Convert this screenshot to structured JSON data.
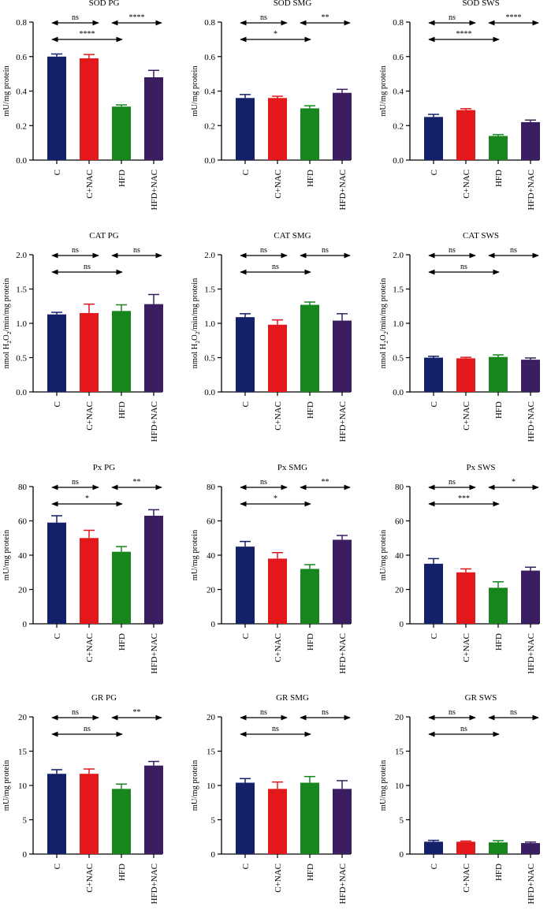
{
  "categories": [
    "C",
    "C+NAC",
    "HFD",
    "HFD+NAC"
  ],
  "bar_colors": [
    "#13216b",
    "#e3181a",
    "#18861e",
    "#3b1e61"
  ],
  "chart_data": [
    {
      "type": "bar",
      "title": "SOD PG",
      "ylabel": "mU/mg protein",
      "ylim": [
        0,
        0.8
      ],
      "yticks": [
        0.0,
        0.2,
        0.4,
        0.6,
        0.8
      ],
      "tick_labels": [
        "0.0",
        "0.2",
        "0.4",
        "0.6",
        "0.8"
      ],
      "values": [
        0.6,
        0.59,
        0.31,
        0.48
      ],
      "errors": [
        0.015,
        0.022,
        0.01,
        0.04
      ],
      "sig": {
        "top_left": "ns",
        "top_right": "****",
        "bottom": "****"
      }
    },
    {
      "type": "bar",
      "title": "SOD SMG",
      "ylabel": "mU/mg protein",
      "ylim": [
        0,
        0.8
      ],
      "yticks": [
        0.0,
        0.2,
        0.4,
        0.6,
        0.8
      ],
      "tick_labels": [
        "0.0",
        "0.2",
        "0.4",
        "0.6",
        "0.8"
      ],
      "values": [
        0.36,
        0.36,
        0.3,
        0.39
      ],
      "errors": [
        0.02,
        0.01,
        0.015,
        0.02
      ],
      "sig": {
        "top_left": "ns",
        "top_right": "**",
        "bottom": "*"
      }
    },
    {
      "type": "bar",
      "title": "SOD SWS",
      "ylabel": "mU/mg protein",
      "ylim": [
        0,
        0.8
      ],
      "yticks": [
        0.0,
        0.2,
        0.4,
        0.6,
        0.8
      ],
      "tick_labels": [
        "0.0",
        "0.2",
        "0.4",
        "0.6",
        "0.8"
      ],
      "values": [
        0.25,
        0.29,
        0.14,
        0.22
      ],
      "errors": [
        0.015,
        0.008,
        0.008,
        0.012
      ],
      "sig": {
        "top_left": "ns",
        "top_right": "****",
        "bottom": "****"
      }
    },
    {
      "type": "bar",
      "title": "CAT PG",
      "ylabel_parts": [
        "nmol H",
        "2",
        "O",
        "2",
        "/min/mg protein"
      ],
      "ylim": [
        0,
        2.0
      ],
      "yticks": [
        0.0,
        0.5,
        1.0,
        1.5,
        2.0
      ],
      "tick_labels": [
        "0.0",
        "0.5",
        "1.0",
        "1.5",
        "2.0"
      ],
      "values": [
        1.13,
        1.15,
        1.18,
        1.28
      ],
      "errors": [
        0.03,
        0.13,
        0.09,
        0.14
      ],
      "sig": {
        "top_left": "ns",
        "top_right": "ns",
        "bottom": "ns"
      }
    },
    {
      "type": "bar",
      "title": "CAT SMG",
      "ylabel_parts": [
        "nmol H",
        "2",
        "O",
        "2",
        "/min/mg protein"
      ],
      "ylim": [
        0,
        2.0
      ],
      "yticks": [
        0.0,
        0.5,
        1.0,
        1.5,
        2.0
      ],
      "tick_labels": [
        "0.0",
        "0.5",
        "1.0",
        "1.5",
        "2.0"
      ],
      "values": [
        1.09,
        0.98,
        1.27,
        1.04
      ],
      "errors": [
        0.05,
        0.07,
        0.04,
        0.1
      ],
      "sig": {
        "top_left": "ns",
        "top_right": "ns",
        "bottom": "ns"
      }
    },
    {
      "type": "bar",
      "title": "CAT SWS",
      "ylabel_parts": [
        "nmol H",
        "2",
        "O",
        "2",
        "/min/mg protein"
      ],
      "ylim": [
        0,
        2.0
      ],
      "yticks": [
        0.0,
        0.5,
        1.0,
        1.5,
        2.0
      ],
      "tick_labels": [
        "0.0",
        "0.5",
        "1.0",
        "1.5",
        "2.0"
      ],
      "values": [
        0.5,
        0.49,
        0.51,
        0.47
      ],
      "errors": [
        0.02,
        0.015,
        0.03,
        0.025
      ],
      "sig": {
        "top_left": "ns",
        "top_right": "ns",
        "bottom": "ns"
      }
    },
    {
      "type": "bar",
      "title": "Px PG",
      "ylabel": "mU/mg protein",
      "ylim": [
        0,
        80
      ],
      "yticks": [
        0,
        20,
        40,
        60,
        80
      ],
      "tick_labels": [
        "0",
        "20",
        "40",
        "60",
        "80"
      ],
      "values": [
        59,
        50,
        42,
        63
      ],
      "errors": [
        4,
        4.5,
        3,
        3.5
      ],
      "sig": {
        "top_left": "ns",
        "top_right": "**",
        "bottom": "*"
      }
    },
    {
      "type": "bar",
      "title": "Px SMG",
      "ylabel": "mU/mg protein",
      "ylim": [
        0,
        80
      ],
      "yticks": [
        0,
        20,
        40,
        60,
        80
      ],
      "tick_labels": [
        "0",
        "20",
        "40",
        "60",
        "80"
      ],
      "values": [
        45,
        38,
        32,
        49
      ],
      "errors": [
        3,
        3.5,
        2.5,
        2.5
      ],
      "sig": {
        "top_left": "ns",
        "top_right": "**",
        "bottom": "*"
      }
    },
    {
      "type": "bar",
      "title": "Px SWS",
      "ylabel": "mU/mg protein",
      "ylim": [
        0,
        80
      ],
      "yticks": [
        0,
        20,
        40,
        60,
        80
      ],
      "tick_labels": [
        "0",
        "20",
        "40",
        "60",
        "80"
      ],
      "values": [
        35,
        30,
        21,
        31
      ],
      "errors": [
        3,
        2,
        3.5,
        2
      ],
      "sig": {
        "top_left": "ns",
        "top_right": "*",
        "bottom": "***"
      }
    },
    {
      "type": "bar",
      "title": "GR PG",
      "ylabel": "mU/mg protein",
      "ylim": [
        0,
        20
      ],
      "yticks": [
        0,
        5,
        10,
        15,
        20
      ],
      "tick_labels": [
        "0",
        "5",
        "10",
        "15",
        "20"
      ],
      "values": [
        11.7,
        11.7,
        9.5,
        12.9
      ],
      "errors": [
        0.6,
        0.7,
        0.7,
        0.6
      ],
      "sig": {
        "top_left": "ns",
        "top_right": "**",
        "bottom": "ns"
      }
    },
    {
      "type": "bar",
      "title": "GR SMG",
      "ylabel": "mU/mg protein",
      "ylim": [
        0,
        20
      ],
      "yticks": [
        0,
        5,
        10,
        15,
        20
      ],
      "tick_labels": [
        "0",
        "5",
        "10",
        "15",
        "20"
      ],
      "values": [
        10.4,
        9.5,
        10.4,
        9.5
      ],
      "errors": [
        0.6,
        1.0,
        0.9,
        1.2
      ],
      "sig": {
        "top_left": "ns",
        "top_right": "ns",
        "bottom": "ns"
      }
    },
    {
      "type": "bar",
      "title": "GR SWS",
      "ylabel": "mU/mg protein",
      "ylim": [
        0,
        20
      ],
      "yticks": [
        0,
        5,
        10,
        15,
        20
      ],
      "tick_labels": [
        "0",
        "5",
        "10",
        "15",
        "20"
      ],
      "values": [
        1.8,
        1.8,
        1.7,
        1.6
      ],
      "errors": [
        0.2,
        0.1,
        0.25,
        0.15
      ],
      "sig": {
        "top_left": "ns",
        "top_right": "ns",
        "bottom": "ns"
      }
    }
  ]
}
